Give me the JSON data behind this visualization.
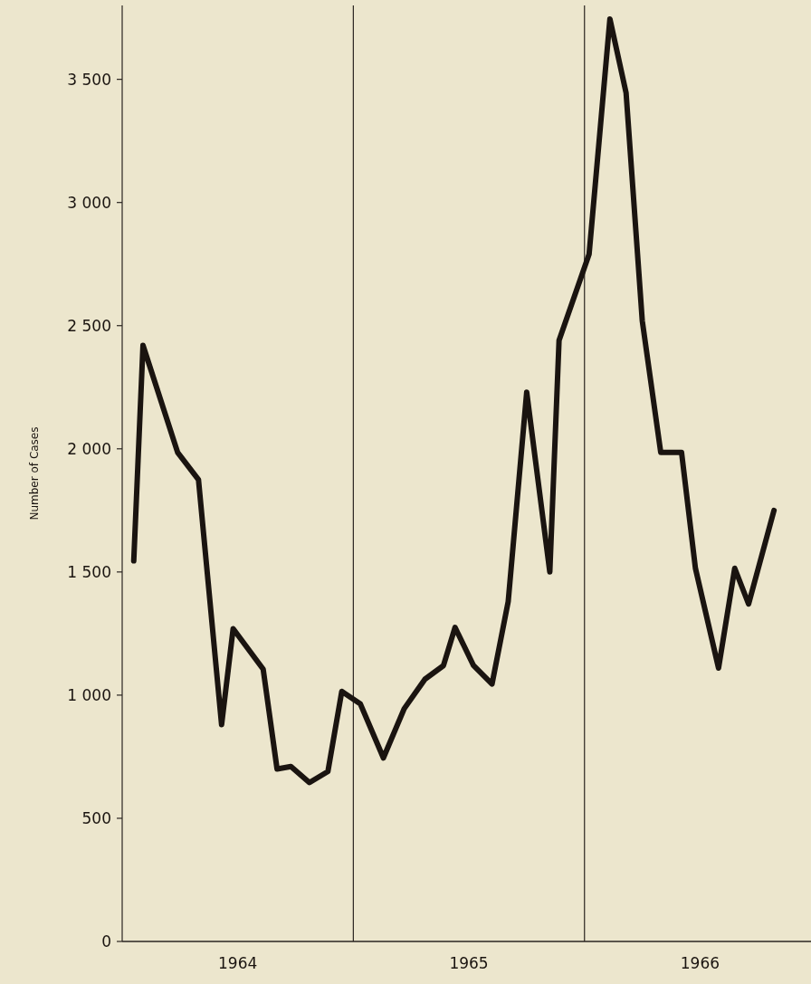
{
  "chart_data": {
    "type": "line",
    "ylabel": "Number of Cases",
    "x": [
      1964.05,
      1964.09,
      1964.24,
      1964.33,
      1964.43,
      1964.48,
      1964.61,
      1964.67,
      1964.73,
      1964.81,
      1964.89,
      1964.95,
      1965.03,
      1965.13,
      1965.22,
      1965.31,
      1965.39,
      1965.44,
      1965.52,
      1965.6,
      1965.67,
      1965.75,
      1965.85,
      1965.89,
      1966.02,
      1966.11,
      1966.18,
      1966.25,
      1966.33,
      1966.42,
      1966.48,
      1966.58,
      1966.65,
      1966.71,
      1966.82
    ],
    "series": [
      {
        "color": "#1a1410",
        "values": [
          1545,
          2420,
          1985,
          1875,
          880,
          1270,
          1105,
          700,
          710,
          645,
          690,
          1015,
          965,
          745,
          945,
          1065,
          1120,
          1275,
          1120,
          1045,
          1380,
          2230,
          1500,
          2440,
          2790,
          3745,
          3445,
          2520,
          1985,
          1985,
          1515,
          1110,
          1515,
          1370,
          1750
        ]
      }
    ],
    "xlim": [
      1964,
      1966.98
    ],
    "xticks": [
      {
        "value": 1964.5,
        "label": "1964"
      },
      {
        "value": 1965.5,
        "label": "1965"
      },
      {
        "value": 1966.5,
        "label": "1966"
      }
    ],
    "ylim": [
      0,
      3800
    ],
    "yticks": [
      0,
      500,
      {
        "value": 1000,
        "label": "1 000"
      },
      {
        "value": 1500,
        "label": "1 500"
      },
      {
        "value": 2000,
        "label": "2 000"
      },
      {
        "value": 2500,
        "label": "2 500"
      },
      {
        "value": 3000,
        "label": "3 000"
      },
      {
        "value": 3500,
        "label": "3 500"
      }
    ],
    "ref_lines": [
      {
        "axis": "x",
        "value": 1965,
        "color": "#2a2420"
      },
      {
        "axis": "x",
        "value": 1966,
        "color": "#2a2420"
      }
    ],
    "grid": false,
    "marker": "none",
    "line_style": "solid"
  }
}
